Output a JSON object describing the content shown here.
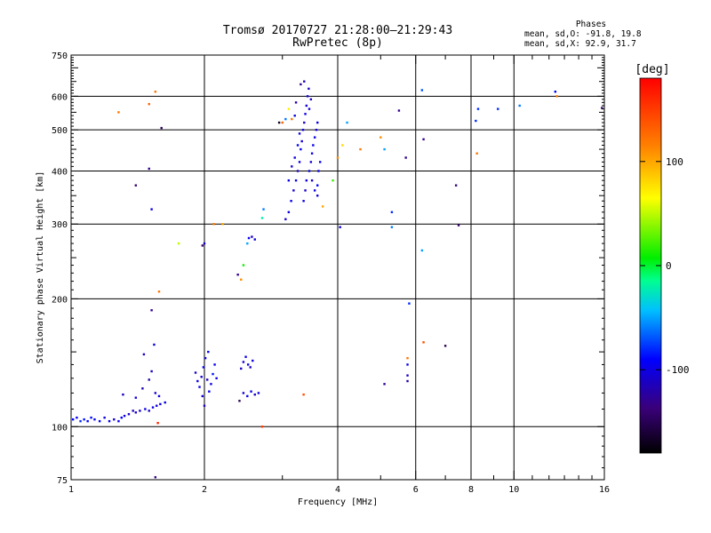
{
  "chart_data": {
    "type": "scatter",
    "title": "Tromsø 20170727 21:28:00–21:29:43",
    "subtitle": "RwPretec (8p)",
    "xlabel": "Frequency [MHz]",
    "ylabel": "Stationary phase Virtual Height [km]",
    "x_scale": "log",
    "y_scale": "log",
    "xlim": [
      1,
      16
    ],
    "ylim": [
      75,
      750
    ],
    "x_ticks": [
      "1",
      "2",
      "4",
      "6",
      "8",
      "10",
      "16"
    ],
    "x_tick_values": [
      1,
      2,
      4,
      6,
      8,
      10,
      16
    ],
    "y_ticks": [
      "75",
      "100",
      "200",
      "300",
      "400",
      "500",
      "600",
      "750"
    ],
    "y_tick_values": [
      75,
      100,
      200,
      300,
      400,
      500,
      600,
      750
    ],
    "x_grid": [
      2,
      4,
      6,
      8,
      10
    ],
    "y_grid": [
      100,
      200,
      300,
      400,
      500,
      600
    ],
    "colorbar": {
      "label": "[deg]",
      "range": [
        -180,
        180
      ],
      "ticks": [
        100,
        0,
        -100
      ],
      "tick_labels": [
        "100",
        "0",
        "-100"
      ]
    },
    "stats": {
      "heading": "Phases",
      "line_o": "mean, sd,O: -91.8, 19.8",
      "line_x": "mean, sd,X:  92.9, 31.7"
    },
    "points": [
      [
        1.01,
        104,
        -90
      ],
      [
        1.03,
        105,
        -95
      ],
      [
        1.05,
        103,
        -80
      ],
      [
        1.07,
        104,
        -85
      ],
      [
        1.09,
        103,
        -92
      ],
      [
        1.11,
        105,
        -88
      ],
      [
        1.13,
        104,
        -97
      ],
      [
        1.16,
        103,
        -90
      ],
      [
        1.19,
        105,
        -100
      ],
      [
        1.22,
        103,
        -95
      ],
      [
        1.25,
        104,
        -105
      ],
      [
        1.28,
        103,
        -98
      ],
      [
        1.3,
        105,
        -92
      ],
      [
        1.32,
        106,
        -100
      ],
      [
        1.35,
        107,
        -110
      ],
      [
        1.38,
        109,
        -115
      ],
      [
        1.4,
        108,
        -108
      ],
      [
        1.43,
        109,
        -105
      ],
      [
        1.47,
        110,
        -100
      ],
      [
        1.5,
        109,
        -112
      ],
      [
        1.53,
        111,
        -98
      ],
      [
        1.56,
        112,
        -105
      ],
      [
        1.59,
        113,
        -100
      ],
      [
        1.63,
        114,
        -95
      ],
      [
        1.31,
        119,
        -110
      ],
      [
        1.4,
        117,
        -105
      ],
      [
        1.45,
        123,
        -115
      ],
      [
        1.5,
        129,
        -120
      ],
      [
        1.52,
        135,
        -110
      ],
      [
        1.55,
        120,
        -105
      ],
      [
        1.58,
        118,
        -100
      ],
      [
        1.46,
        148,
        -110
      ],
      [
        1.54,
        156,
        -100
      ],
      [
        1.52,
        188,
        -130
      ],
      [
        1.57,
        102,
        160
      ],
      [
        1.55,
        76,
        -130
      ],
      [
        1.91,
        134,
        -110
      ],
      [
        1.93,
        128,
        -100
      ],
      [
        1.95,
        124,
        -95
      ],
      [
        1.97,
        131,
        -105
      ],
      [
        1.99,
        138,
        -90
      ],
      [
        2.01,
        145,
        -100
      ],
      [
        2.03,
        129,
        -110
      ],
      [
        2.05,
        121,
        -95
      ],
      [
        2.07,
        126,
        -100
      ],
      [
        2.09,
        133,
        -85
      ],
      [
        2.11,
        140,
        -95
      ],
      [
        1.98,
        118,
        -105
      ],
      [
        2.04,
        150,
        -90
      ],
      [
        2.0,
        112,
        -115
      ],
      [
        2.13,
        130,
        -100
      ],
      [
        2.42,
        137,
        -110
      ],
      [
        2.45,
        142,
        -105
      ],
      [
        2.48,
        146,
        -100
      ],
      [
        2.51,
        140,
        -95
      ],
      [
        2.54,
        138,
        -110
      ],
      [
        2.57,
        143,
        -100
      ],
      [
        2.45,
        120,
        -105
      ],
      [
        2.5,
        118,
        -100
      ],
      [
        2.55,
        121,
        -95
      ],
      [
        2.6,
        119,
        -110
      ],
      [
        2.65,
        120,
        -100
      ],
      [
        2.4,
        115,
        -150
      ],
      [
        2.7,
        100,
        150
      ],
      [
        3.35,
        119,
        140
      ],
      [
        1.98,
        267,
        -140
      ],
      [
        2.0,
        270,
        -110
      ],
      [
        2.1,
        300,
        120
      ],
      [
        2.2,
        300,
        100
      ],
      [
        2.38,
        228,
        -130
      ],
      [
        2.42,
        222,
        110
      ],
      [
        2.45,
        240,
        10
      ],
      [
        2.52,
        278,
        -95
      ],
      [
        2.56,
        280,
        -110
      ],
      [
        2.6,
        276,
        -100
      ],
      [
        2.5,
        270,
        -50
      ],
      [
        2.7,
        310,
        -20
      ],
      [
        2.72,
        325,
        -60
      ],
      [
        1.75,
        270,
        50
      ],
      [
        1.58,
        208,
        120
      ],
      [
        1.52,
        325,
        -100
      ],
      [
        3.05,
        308,
        -110
      ],
      [
        3.1,
        320,
        -100
      ],
      [
        3.14,
        340,
        -95
      ],
      [
        3.18,
        360,
        -105
      ],
      [
        3.22,
        380,
        -100
      ],
      [
        3.25,
        400,
        -110
      ],
      [
        3.28,
        420,
        -100
      ],
      [
        3.3,
        450,
        -95
      ],
      [
        3.32,
        470,
        -105
      ],
      [
        3.34,
        500,
        -100
      ],
      [
        3.36,
        520,
        -110
      ],
      [
        3.38,
        545,
        -100
      ],
      [
        3.4,
        570,
        -105
      ],
      [
        3.42,
        600,
        -100
      ],
      [
        3.44,
        625,
        -110
      ],
      [
        3.1,
        380,
        -100
      ],
      [
        3.15,
        410,
        -105
      ],
      [
        3.2,
        430,
        -100
      ],
      [
        3.25,
        460,
        -95
      ],
      [
        3.28,
        490,
        -100
      ],
      [
        3.45,
        400,
        -100
      ],
      [
        3.48,
        420,
        -105
      ],
      [
        3.5,
        440,
        -100
      ],
      [
        3.52,
        460,
        -95
      ],
      [
        3.55,
        480,
        -100
      ],
      [
        3.58,
        500,
        -105
      ],
      [
        3.6,
        520,
        -100
      ],
      [
        3.5,
        380,
        -110
      ],
      [
        3.55,
        360,
        -100
      ],
      [
        3.6,
        350,
        -105
      ],
      [
        3.62,
        400,
        -100
      ],
      [
        3.65,
        420,
        -95
      ],
      [
        3.4,
        380,
        -100
      ],
      [
        3.38,
        360,
        -110
      ],
      [
        3.35,
        340,
        -100
      ],
      [
        3.45,
        560,
        -105
      ],
      [
        3.48,
        590,
        -110
      ],
      [
        3.2,
        540,
        -100
      ],
      [
        3.22,
        580,
        -120
      ],
      [
        3.3,
        640,
        -130
      ],
      [
        3.36,
        650,
        -110
      ],
      [
        3.05,
        530,
        -60
      ],
      [
        3.0,
        520,
        130
      ],
      [
        2.95,
        520,
        -170
      ],
      [
        3.1,
        560,
        70
      ],
      [
        3.15,
        530,
        120
      ],
      [
        3.6,
        370,
        -90
      ],
      [
        3.7,
        330,
        100
      ],
      [
        3.9,
        380,
        20
      ],
      [
        4.0,
        430,
        110
      ],
      [
        4.1,
        460,
        80
      ],
      [
        4.2,
        520,
        -50
      ],
      [
        4.05,
        295,
        -100
      ],
      [
        4.5,
        450,
        120
      ],
      [
        5.0,
        480,
        110
      ],
      [
        5.1,
        450,
        -50
      ],
      [
        5.3,
        320,
        -80
      ],
      [
        5.3,
        295,
        -60
      ],
      [
        5.5,
        555,
        -130
      ],
      [
        5.7,
        430,
        -130
      ],
      [
        5.8,
        195,
        -80
      ],
      [
        5.75,
        145,
        120
      ],
      [
        5.75,
        140,
        -100
      ],
      [
        5.75,
        132,
        -110
      ],
      [
        5.75,
        128,
        -120
      ],
      [
        5.1,
        126,
        -130
      ],
      [
        6.2,
        620,
        -70
      ],
      [
        6.2,
        260,
        -50
      ],
      [
        6.25,
        475,
        -130
      ],
      [
        6.25,
        158,
        140
      ],
      [
        7.0,
        155,
        -150
      ],
      [
        7.4,
        370,
        -140
      ],
      [
        7.5,
        298,
        -140
      ],
      [
        8.3,
        560,
        -80
      ],
      [
        8.2,
        525,
        -80
      ],
      [
        8.25,
        440,
        120
      ],
      [
        9.2,
        560,
        -80
      ],
      [
        10.3,
        570,
        -60
      ],
      [
        12.5,
        600,
        120
      ],
      [
        12.4,
        615,
        -90
      ],
      [
        15.8,
        563,
        -140
      ],
      [
        1.28,
        550,
        120
      ],
      [
        1.5,
        575,
        130
      ],
      [
        1.55,
        615,
        120
      ],
      [
        1.6,
        505,
        -150
      ],
      [
        1.5,
        405,
        -130
      ],
      [
        1.4,
        370,
        -140
      ]
    ]
  }
}
